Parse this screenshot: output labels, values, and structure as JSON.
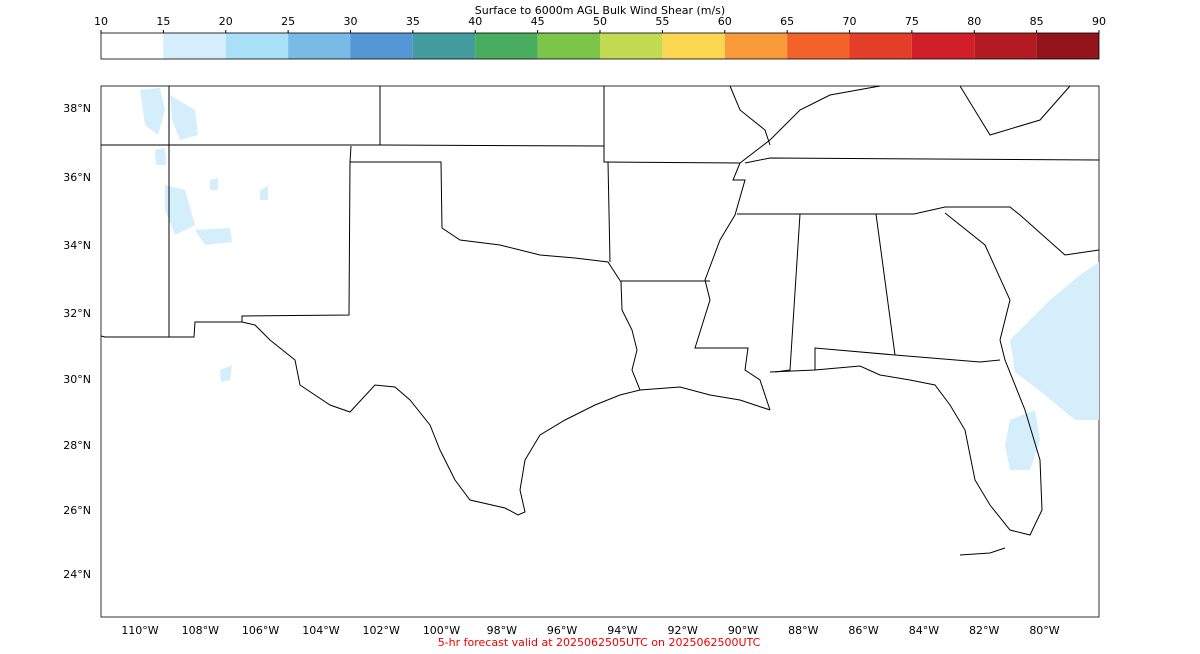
{
  "colorbar": {
    "title": "Surface to 6000m AGL Bulk Wind Shear (m/s)",
    "lim": [
      10,
      90
    ],
    "ticks": [
      10,
      15,
      20,
      25,
      30,
      35,
      40,
      45,
      50,
      55,
      60,
      65,
      70,
      75,
      80,
      85,
      90
    ],
    "colors": [
      "#ffffff",
      "#d4eefb",
      "#a9dff7",
      "#79bbe7",
      "#5597d4",
      "#439c9d",
      "#48ad5e",
      "#7bc548",
      "#c3db53",
      "#fbd650",
      "#f89b38",
      "#f26229",
      "#e33f28",
      "#d11f2a",
      "#b31a22",
      "#94141b"
    ]
  },
  "lat_labels": [
    "38°N",
    "36°N",
    "34°N",
    "32°N",
    "30°N",
    "28°N",
    "26°N",
    "24°N"
  ],
  "lon_labels": [
    "110°W",
    "108°W",
    "106°W",
    "104°W",
    "102°W",
    "100°W",
    "98°W",
    "96°W",
    "94°W",
    "92°W",
    "90°W",
    "88°W",
    "86°W",
    "84°W",
    "82°W",
    "80°W"
  ],
  "footer": "5-hr forecast valid at 2025062505UTC on 2025062500UTC"
}
